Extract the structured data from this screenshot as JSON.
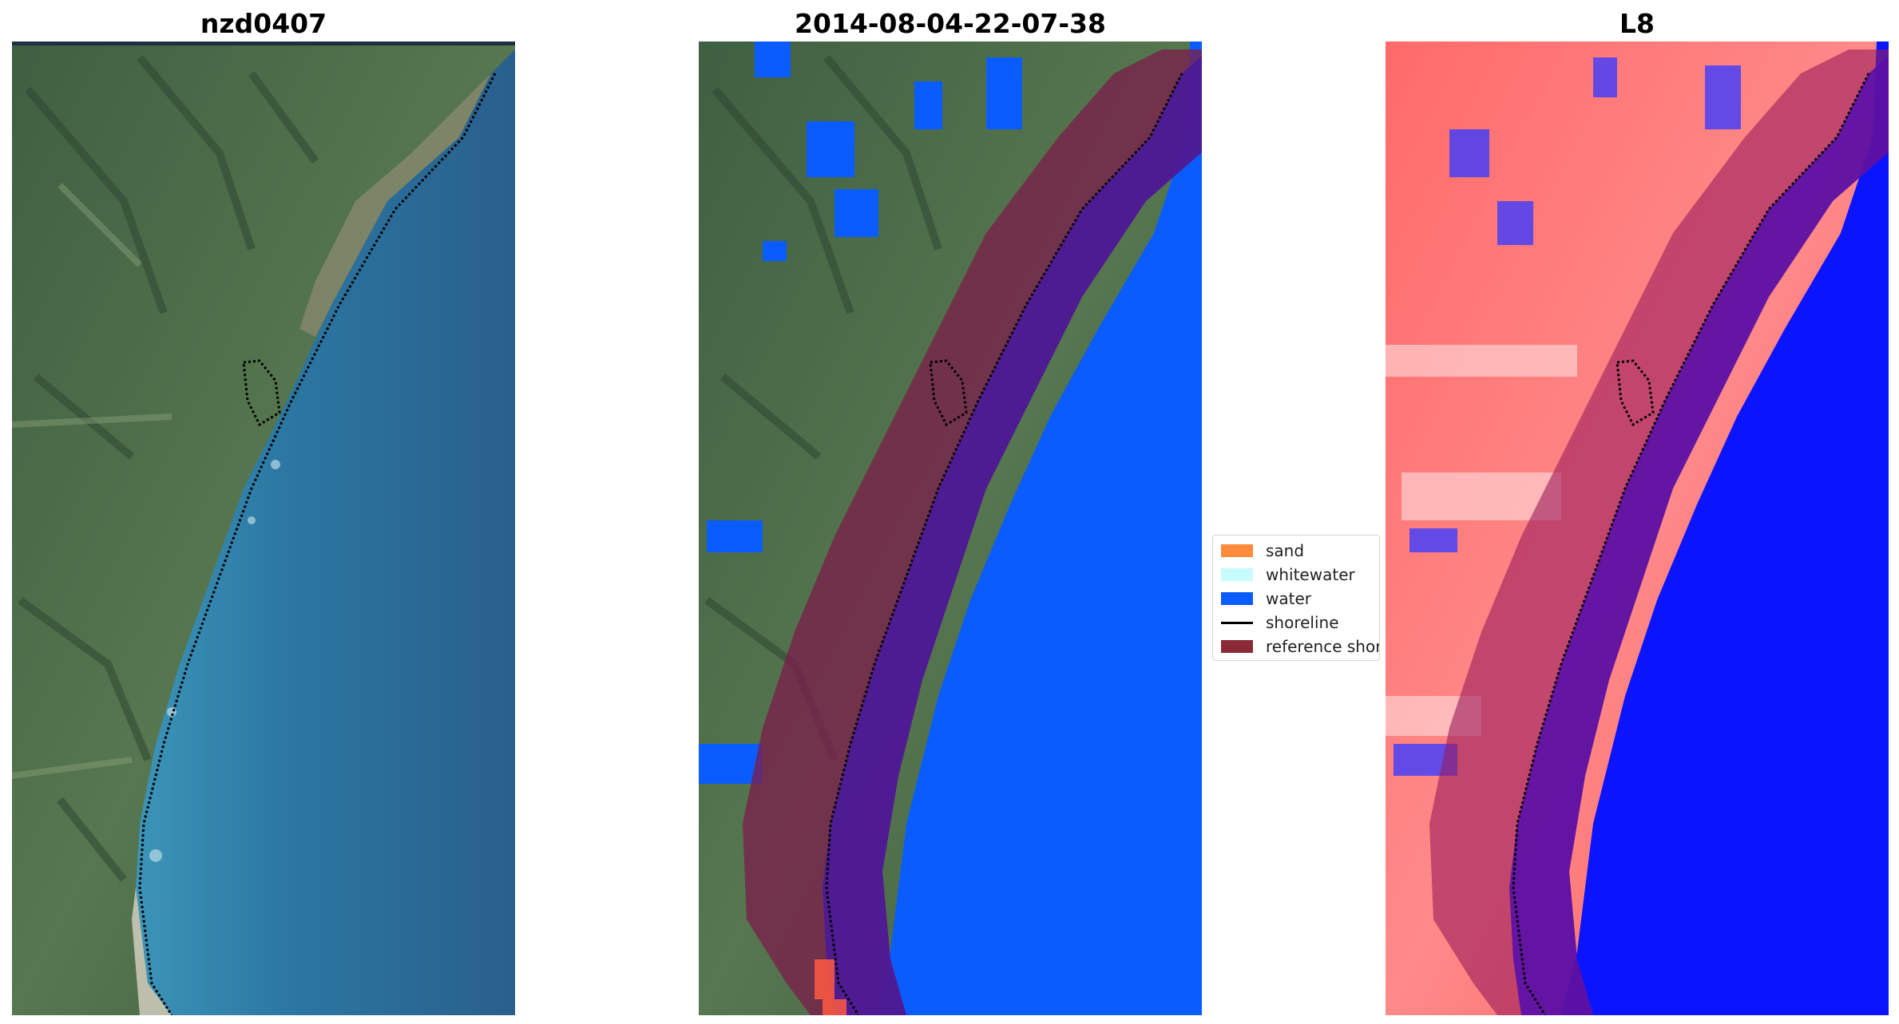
{
  "panels": [
    {
      "title": "nzd0407"
    },
    {
      "title": "2014-08-04-22-07-38"
    },
    {
      "title": "L8"
    }
  ],
  "legend": {
    "items": [
      {
        "label": "sand",
        "color": "#ff8b3d",
        "kind": "patch"
      },
      {
        "label": "whitewater",
        "color": "#c8fbfb",
        "kind": "patch"
      },
      {
        "label": "water",
        "color": "#0a5cff",
        "kind": "patch"
      },
      {
        "label": "shoreline",
        "color": "#000000",
        "kind": "line"
      },
      {
        "label": "reference shoreline buffer",
        "color": "#8b2a35",
        "kind": "patch"
      }
    ]
  },
  "colors": {
    "land": "#4a6e4c",
    "ocean": "#2f7aa5",
    "water_class": "#0a5cff",
    "buffer": "#7a1f4a",
    "index_land": "#ff5a5a",
    "index_water": "#0a14ff"
  }
}
